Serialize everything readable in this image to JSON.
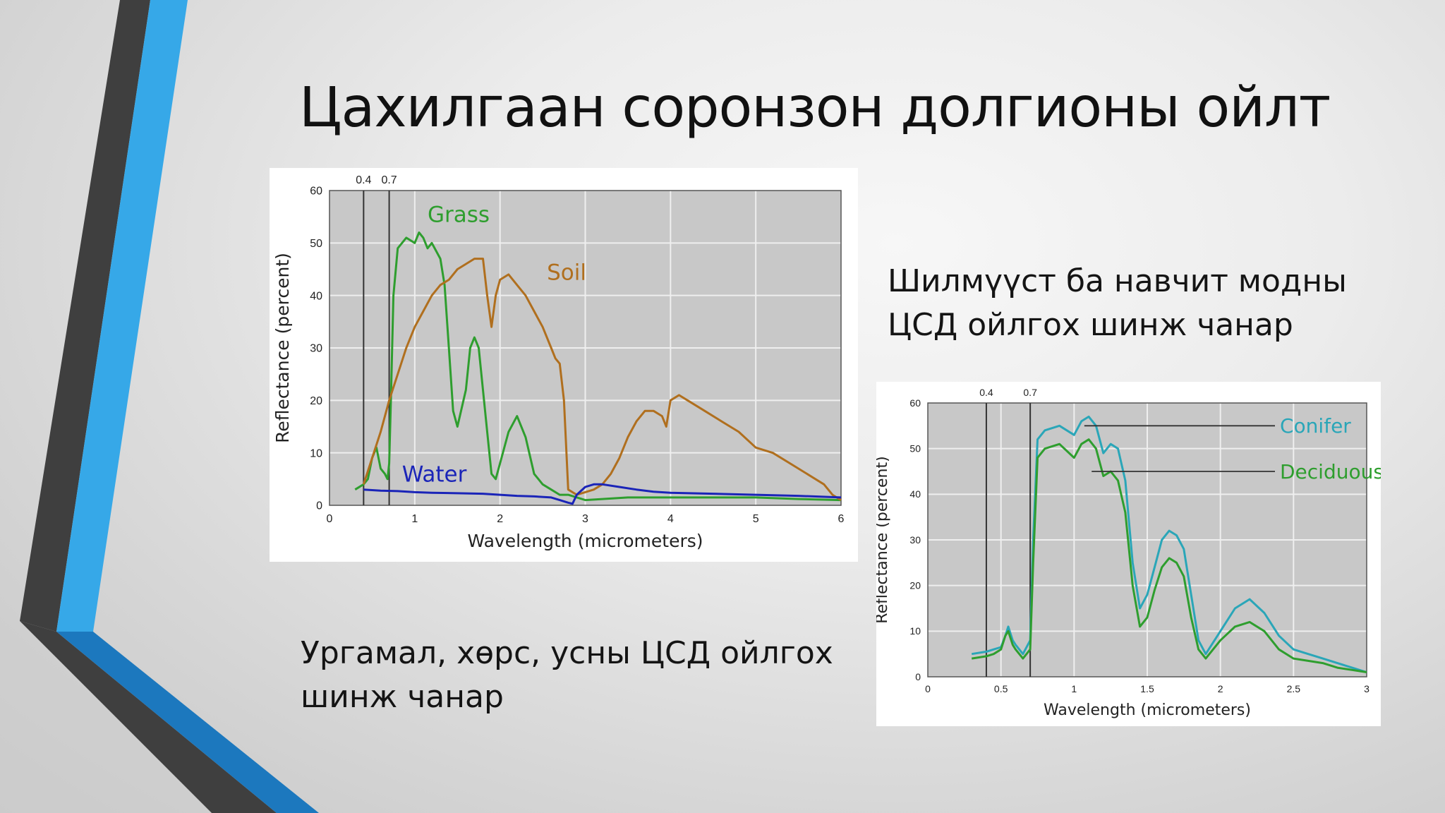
{
  "slide": {
    "title": "Цахилгаан соронзон долгионы ойлт",
    "caption_left": "Ургамал, хөрс, усны ЦСД ойлгох шинж чанар",
    "caption_right": "Шилмүүст ба навчит модны ЦСД ойлгох шинж чанар",
    "accent_colors": {
      "blue": "#36A8E8",
      "dark_gray": "#3F3F3F",
      "blue_dark": "#1C78BE"
    }
  },
  "chart_data": [
    {
      "type": "line",
      "xlabel": "Wavelength (micrometers)",
      "ylabel": "Reflectance (percent)",
      "xlim": [
        0,
        6
      ],
      "ylim": [
        0,
        60
      ],
      "xticks": [
        "0",
        "1",
        "2",
        "3",
        "4",
        "5",
        "6"
      ],
      "yticks": [
        "0",
        "10",
        "20",
        "30",
        "40",
        "50",
        "60"
      ],
      "grid": true,
      "background": "#c8c8c8",
      "markers": [
        {
          "label": "0.4",
          "x": 0.4
        },
        {
          "label": "0.7",
          "x": 0.7
        }
      ],
      "series": [
        {
          "name": "Grass",
          "color": "#2E9E2E",
          "label_pos": {
            "x": 1.15,
            "y": 54
          },
          "x": [
            0.3,
            0.4,
            0.45,
            0.5,
            0.55,
            0.6,
            0.65,
            0.68,
            0.7,
            0.72,
            0.75,
            0.8,
            0.9,
            1.0,
            1.05,
            1.1,
            1.15,
            1.2,
            1.3,
            1.35,
            1.4,
            1.45,
            1.5,
            1.6,
            1.65,
            1.7,
            1.75,
            1.8,
            1.85,
            1.9,
            1.95,
            2.0,
            2.1,
            2.2,
            2.3,
            2.4,
            2.5,
            2.6,
            2.7,
            2.8,
            3.0,
            3.5,
            4.0,
            4.5,
            5.0,
            5.5,
            6.0
          ],
          "y": [
            3,
            4,
            5,
            9,
            11,
            7,
            6,
            5,
            8,
            20,
            40,
            49,
            51,
            50,
            52,
            51,
            49,
            50,
            47,
            42,
            30,
            18,
            15,
            22,
            30,
            32,
            30,
            22,
            14,
            6,
            5,
            8,
            14,
            17,
            13,
            6,
            4,
            3,
            2,
            2,
            1,
            1.5,
            1.5,
            1.5,
            1.5,
            1.2,
            1
          ]
        },
        {
          "name": "Soil",
          "color": "#B06F1E",
          "label_pos": {
            "x": 2.55,
            "y": 43
          },
          "x": [
            0.4,
            0.5,
            0.6,
            0.7,
            0.8,
            0.9,
            1.0,
            1.1,
            1.2,
            1.3,
            1.4,
            1.5,
            1.6,
            1.7,
            1.8,
            1.85,
            1.9,
            1.95,
            2.0,
            2.1,
            2.2,
            2.3,
            2.4,
            2.5,
            2.6,
            2.65,
            2.7,
            2.75,
            2.8,
            2.9,
            3.0,
            3.1,
            3.2,
            3.3,
            3.4,
            3.5,
            3.6,
            3.7,
            3.8,
            3.9,
            3.95,
            4.0,
            4.1,
            4.2,
            4.4,
            4.6,
            4.8,
            5.0,
            5.2,
            5.4,
            5.6,
            5.8,
            5.9,
            6.0
          ],
          "y": [
            4,
            9,
            14,
            20,
            25,
            30,
            34,
            37,
            40,
            42,
            43,
            45,
            46,
            47,
            47,
            40,
            34,
            40,
            43,
            44,
            42,
            40,
            37,
            34,
            30,
            28,
            27,
            20,
            3,
            2,
            2.5,
            3,
            4,
            6,
            9,
            13,
            16,
            18,
            18,
            17,
            15,
            20,
            21,
            20,
            18,
            16,
            14,
            11,
            10,
            8,
            6,
            4,
            2,
            1
          ]
        },
        {
          "name": "Water",
          "color": "#1A24B8",
          "label_pos": {
            "x": 0.85,
            "y": 4.5
          },
          "x": [
            0.4,
            0.6,
            0.8,
            1.0,
            1.2,
            1.5,
            1.8,
            2.0,
            2.2,
            2.4,
            2.6,
            2.7,
            2.8,
            2.85,
            2.9,
            3.0,
            3.1,
            3.2,
            3.4,
            3.6,
            3.8,
            4.0,
            4.5,
            5.0,
            5.5,
            6.0
          ],
          "y": [
            3,
            2.8,
            2.7,
            2.5,
            2.4,
            2.3,
            2.2,
            2.0,
            1.8,
            1.7,
            1.5,
            1.0,
            0.5,
            0.3,
            2,
            3.5,
            4,
            4,
            3.5,
            3,
            2.6,
            2.4,
            2.2,
            2,
            1.8,
            1.5
          ]
        }
      ]
    },
    {
      "type": "line",
      "xlabel": "Wavelength (micrometers)",
      "ylabel": "Reflectance (percent)",
      "xlim": [
        0,
        3
      ],
      "ylim": [
        0,
        60
      ],
      "xticks": [
        "0",
        "0.5",
        "1",
        "1.5",
        "2",
        "2.5",
        "3"
      ],
      "yticks": [
        "0",
        "10",
        "20",
        "30",
        "40",
        "50",
        "60"
      ],
      "grid": true,
      "background": "#c8c8c8",
      "markers": [
        {
          "label": "0.4",
          "x": 0.4
        },
        {
          "label": "0.7",
          "x": 0.7
        }
      ],
      "series": [
        {
          "name": "Conifer",
          "color": "#2AA6B8",
          "label_anchor": {
            "x": 1.07,
            "y": 55
          },
          "x": [
            0.3,
            0.4,
            0.45,
            0.5,
            0.53,
            0.55,
            0.58,
            0.6,
            0.65,
            0.7,
            0.72,
            0.75,
            0.8,
            0.9,
            1.0,
            1.05,
            1.1,
            1.15,
            1.2,
            1.25,
            1.3,
            1.35,
            1.4,
            1.45,
            1.5,
            1.55,
            1.6,
            1.65,
            1.7,
            1.75,
            1.8,
            1.85,
            1.9,
            2.0,
            2.1,
            2.2,
            2.3,
            2.4,
            2.5,
            2.6,
            2.7,
            2.8,
            2.9,
            3.0
          ],
          "y": [
            5,
            5.5,
            6,
            6.5,
            9,
            11,
            8,
            7,
            5,
            8,
            30,
            52,
            54,
            55,
            53,
            56,
            57,
            55,
            49,
            51,
            50,
            43,
            25,
            15,
            18,
            24,
            30,
            32,
            31,
            28,
            18,
            8,
            5,
            10,
            15,
            17,
            14,
            9,
            6,
            5,
            4,
            3,
            2,
            1
          ]
        },
        {
          "name": "Deciduous",
          "color": "#2E9E2E",
          "label_anchor": {
            "x": 1.12,
            "y": 45
          },
          "x": [
            0.3,
            0.4,
            0.45,
            0.5,
            0.53,
            0.55,
            0.58,
            0.6,
            0.65,
            0.7,
            0.72,
            0.75,
            0.8,
            0.9,
            1.0,
            1.05,
            1.1,
            1.15,
            1.2,
            1.25,
            1.3,
            1.35,
            1.4,
            1.45,
            1.5,
            1.55,
            1.6,
            1.65,
            1.7,
            1.75,
            1.8,
            1.85,
            1.9,
            2.0,
            2.1,
            2.2,
            2.3,
            2.4,
            2.5,
            2.6,
            2.7,
            2.8,
            2.9,
            3.0
          ],
          "y": [
            4,
            4.5,
            5,
            6,
            9,
            10,
            7,
            6,
            4,
            6,
            25,
            48,
            50,
            51,
            48,
            51,
            52,
            50,
            44,
            45,
            43,
            36,
            20,
            11,
            13,
            19,
            24,
            26,
            25,
            22,
            13,
            6,
            4,
            8,
            11,
            12,
            10,
            6,
            4,
            3.5,
            3,
            2,
            1.5,
            1
          ]
        }
      ]
    }
  ]
}
